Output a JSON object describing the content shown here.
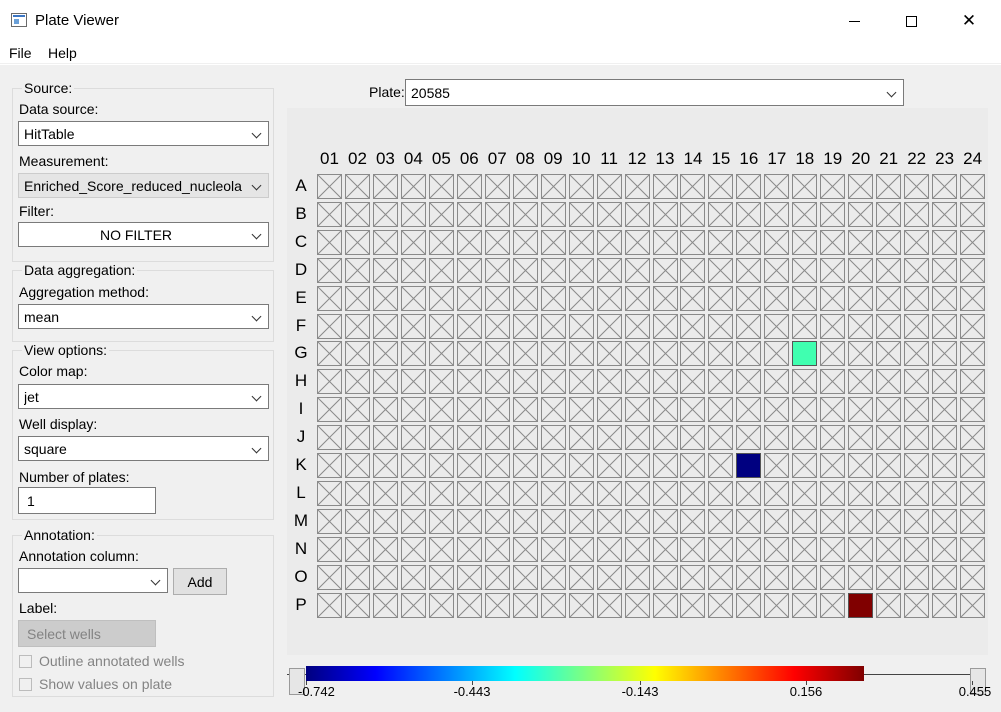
{
  "window": {
    "title": "Plate Viewer",
    "icon": "app-window-icon",
    "minimize_icon": "minimize-icon",
    "maximize_icon": "maximize-icon",
    "close_symbol": "✕"
  },
  "menu": [
    "File",
    "Help"
  ],
  "source": {
    "legend": "Source:",
    "data_source_label": "Data source:",
    "data_source_value": "HitTable",
    "measurement_label": "Measurement:",
    "measurement_value": "Enriched_Score_reduced_nucleola",
    "filter_label": "Filter:",
    "filter_value": "NO FILTER"
  },
  "aggregation": {
    "legend": "Data aggregation:",
    "method_label": "Aggregation method:",
    "method_value": "mean"
  },
  "view": {
    "legend": "View options:",
    "colormap_label": "Color map:",
    "colormap_value": "jet",
    "well_display_label": "Well display:",
    "well_display_value": "square",
    "num_plates_label": "Number of plates:",
    "num_plates_value": "1"
  },
  "annotation": {
    "legend": "Annotation:",
    "column_label": "Annotation column:",
    "column_value": "",
    "add_button": "Add",
    "label_label": "Label:",
    "select_wells_button": "Select wells",
    "outline_checkbox": "Outline annotated wells",
    "show_values_checkbox": "Show values on plate"
  },
  "plate": {
    "label": "Plate:",
    "value": "20585",
    "columns": [
      "01",
      "02",
      "03",
      "04",
      "05",
      "06",
      "07",
      "08",
      "09",
      "10",
      "11",
      "12",
      "13",
      "14",
      "15",
      "16",
      "17",
      "18",
      "19",
      "20",
      "21",
      "22",
      "23",
      "24"
    ],
    "rows": [
      "A",
      "B",
      "C",
      "D",
      "E",
      "F",
      "G",
      "H",
      "I",
      "J",
      "K",
      "L",
      "M",
      "N",
      "O",
      "P"
    ],
    "filled_wells": [
      {
        "row": "G",
        "col": "18",
        "color": "#40ffb0"
      },
      {
        "row": "K",
        "col": "16",
        "color": "#000080"
      },
      {
        "row": "P",
        "col": "20",
        "color": "#800000"
      }
    ]
  },
  "colorbar": {
    "ticks": [
      "-0.742",
      "-0.443",
      "-0.143",
      "0.156",
      "0.455"
    ],
    "colors": [
      "#00007f",
      "#0000ff",
      "#007fff",
      "#00ffff",
      "#7fff7f",
      "#ffff00",
      "#ff7f00",
      "#ff0000",
      "#7f0000"
    ]
  }
}
